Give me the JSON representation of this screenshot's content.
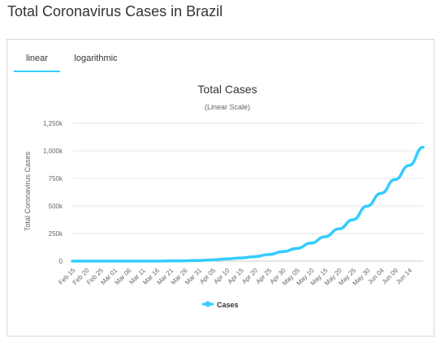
{
  "page": {
    "title": "Total Coronavirus Cases in Brazil"
  },
  "tabs": [
    {
      "label": "linear",
      "active": true
    },
    {
      "label": "logarithmic",
      "active": false
    }
  ],
  "colors": {
    "series": "#33ccff",
    "accent": "#33ccff",
    "grid": "#e6e6e6",
    "title": "#333333",
    "axis_text": "#666666"
  },
  "chart_data": {
    "type": "line",
    "title": "Total Cases",
    "subtitle": "(Linear Scale)",
    "ylabel": "Total Coronavirus Cases",
    "xlabel": "",
    "ylim": [
      0,
      1250000
    ],
    "yticks": [
      0,
      250000,
      500000,
      750000,
      1000000,
      1250000
    ],
    "ytick_labels": [
      "0",
      "250k",
      "500k",
      "750k",
      "1,000k",
      "1,250k"
    ],
    "xtick_labels": [
      "Feb 15",
      "Feb 20",
      "Feb 25",
      "Mar 01",
      "Mar 06",
      "Mar 11",
      "Mar 16",
      "Mar 21",
      "Mar 26",
      "Mar 31",
      "Apr 05",
      "Apr 10",
      "Apr 15",
      "Apr 20",
      "Apr 25",
      "Apr 30",
      "May 05",
      "May 10",
      "May 15",
      "May 20",
      "May 25",
      "May 30",
      "Jun 04",
      "Jun 09",
      "Jun 14"
    ],
    "grid": true,
    "legend": "bottom-center",
    "series": [
      {
        "name": "Cases",
        "x": [
          "Feb 15",
          "Feb 20",
          "Feb 25",
          "Mar 01",
          "Mar 06",
          "Mar 11",
          "Mar 16",
          "Mar 21",
          "Mar 26",
          "Mar 31",
          "Apr 05",
          "Apr 10",
          "Apr 15",
          "Apr 20",
          "Apr 25",
          "Apr 30",
          "May 05",
          "May 10",
          "May 15",
          "May 20",
          "May 25",
          "May 30",
          "Jun 04",
          "Jun 09",
          "Jun 14",
          "Jun 19"
        ],
        "values": [
          0,
          0,
          1,
          2,
          13,
          52,
          234,
          1128,
          2915,
          5812,
          11254,
          19638,
          28320,
          40743,
          59324,
          85380,
          114715,
          162699,
          220291,
          291579,
          374898,
          498440,
          614941,
          739503,
          867882,
          1032913
        ]
      }
    ]
  }
}
